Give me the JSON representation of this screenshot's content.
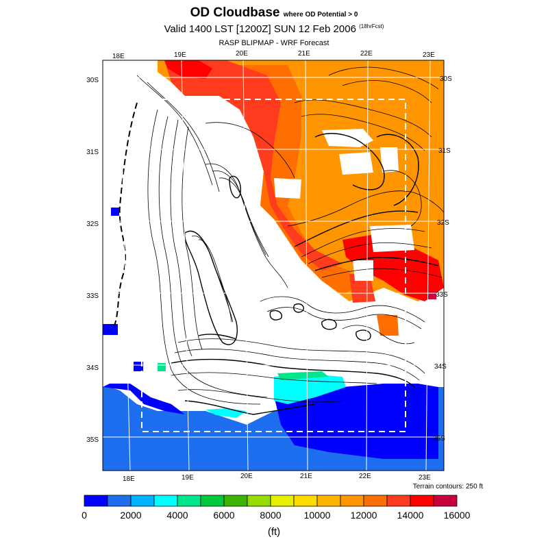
{
  "header": {
    "title_main": "OD Cloudbase",
    "title_qualifier": "where OD Potential > 0",
    "valid_line": "Valid 1400 LST [1200Z] SUN 12 Feb 2006",
    "forecast_hours": "(18hrFcst)",
    "source_line": "RASP BLIPMAP - WRF Forecast"
  },
  "map": {
    "lon_labels_top": [
      "18E",
      "19E",
      "20E",
      "21E",
      "22E",
      "23E"
    ],
    "lon_labels_bottom": [
      "18E",
      "19E",
      "20E",
      "21E",
      "22E",
      "23E"
    ],
    "lat_labels_left": [
      "30S",
      "31S",
      "32S",
      "33S",
      "34S",
      "35S"
    ],
    "lat_labels_right": [
      "30S",
      "31S",
      "32S",
      "33S",
      "34S",
      "35S"
    ],
    "terrain_note": "Terrain contours: 250 ft"
  },
  "colorbar": {
    "unit": "(ft)",
    "tick_labels": [
      "0",
      "2000",
      "4000",
      "6000",
      "8000",
      "10000",
      "12000",
      "14000",
      "16000"
    ],
    "colors": [
      "#0000ff",
      "#1e6ef0",
      "#00b4ff",
      "#00ffff",
      "#00e68c",
      "#00c83c",
      "#3cb400",
      "#96dc00",
      "#e6f000",
      "#ffdc00",
      "#ffb400",
      "#ff9600",
      "#ff6e00",
      "#ff3c1e",
      "#ff0000",
      "#c8003c"
    ]
  }
}
